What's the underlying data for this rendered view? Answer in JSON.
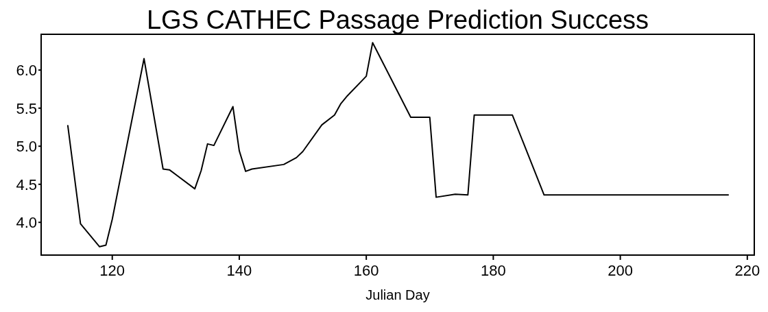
{
  "chart_data": {
    "type": "line",
    "title": "LGS CATHEC Passage Prediction Success",
    "xlabel": "Julian Day",
    "x": [
      113,
      115,
      118,
      119,
      120,
      125,
      128,
      129,
      133,
      134,
      135,
      136,
      139,
      140,
      141,
      142,
      147,
      149,
      150,
      153,
      155,
      156,
      157,
      160,
      161,
      167,
      170,
      171,
      174,
      176,
      177,
      183,
      188,
      217
    ],
    "series": [
      {
        "color": "#000000",
        "values": [
          5.27,
          3.98,
          3.68,
          3.7,
          4.04,
          6.15,
          4.7,
          4.69,
          4.44,
          4.68,
          5.03,
          5.01,
          5.52,
          4.94,
          4.67,
          4.7,
          4.76,
          4.85,
          4.93,
          5.28,
          5.41,
          5.56,
          5.66,
          5.92,
          6.36,
          5.38,
          5.38,
          4.33,
          4.37,
          4.36,
          5.41,
          5.41,
          4.36,
          4.36
        ]
      }
    ],
    "xlim": [
      108.8,
      221.1
    ],
    "ylim": [
      3.57,
      6.47
    ],
    "xticks": [
      120,
      140,
      160,
      180,
      200,
      220
    ],
    "yticks": [
      {
        "value": 4,
        "label": "4.0"
      },
      {
        "value": 4.5,
        "label": "4.5"
      },
      {
        "value": 5,
        "label": "5.0"
      },
      {
        "value": 5.5,
        "label": "5.5"
      },
      {
        "value": 6,
        "label": "6.0"
      }
    ],
    "grid": false,
    "marker": "none",
    "line_style": "solid"
  }
}
